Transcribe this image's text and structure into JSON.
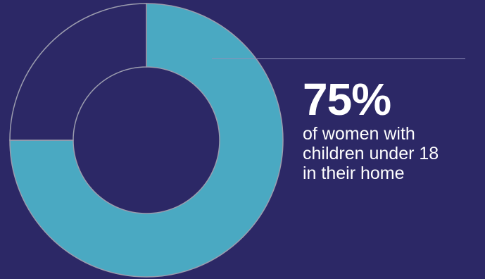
{
  "colors": {
    "background": "#2c2866",
    "highlight_slice": "#4aa9c2",
    "remainder_slice": "#2c2866",
    "slice_border": "#9b9cae",
    "text": "#ffffff",
    "callout_line": "#8f90b8"
  },
  "stat": {
    "value": "75%",
    "caption": "of women with\nchildren under 18\nin their home"
  },
  "chart_data": {
    "type": "pie",
    "donut": true,
    "categories": [
      "",
      ""
    ],
    "values": [
      75,
      25
    ],
    "slice_colors": [
      "#4aa9c2",
      "#2c2866"
    ],
    "start_angle_deg": 0,
    "direction": "clockwise",
    "title": "",
    "legend": "none"
  }
}
